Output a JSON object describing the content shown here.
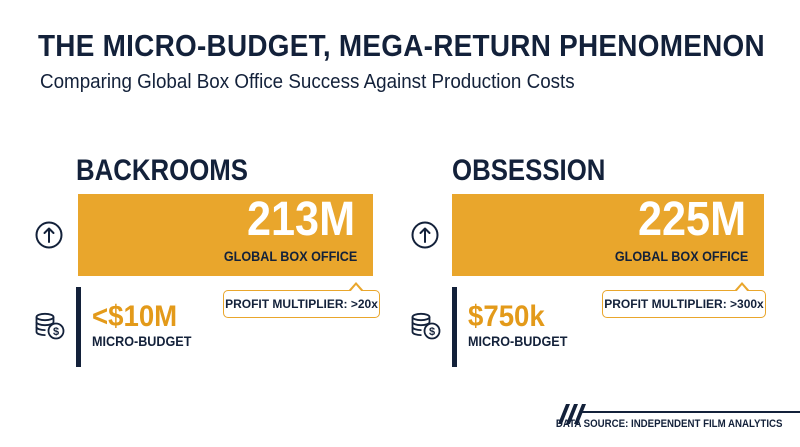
{
  "header": {
    "title": "THE MICRO-BUDGET, MEGA-RETURN PHENOMENON",
    "subtitle": "Comparing Global Box Office Success Against Production Costs"
  },
  "films": [
    {
      "name": "BACKROOMS",
      "gross_display": "213M",
      "gross_label": "GLOBAL BOX OFFICE",
      "multiplier_text": "PROFIT MULTIPLIER: >20x",
      "budget_display": "<$10M",
      "budget_label": "MICRO-BUDGET"
    },
    {
      "name": "OBSESSION",
      "gross_display": "225M",
      "gross_label": "GLOBAL BOX OFFICE",
      "multiplier_text": "PROFIT MULTIPLIER: >300x",
      "budget_display": "$750k",
      "budget_label": "MICRO-BUDGET"
    }
  ],
  "footer": {
    "source": "DATA SOURCE: INDEPENDENT FILM ANALYTICS"
  },
  "icons": {
    "gross": "arrow-up-circle-icon",
    "budget": "coin-stack-dollar-icon"
  },
  "colors": {
    "navy": "#13213a",
    "gold_bar": "#e9a62c",
    "gold_text": "#e39a1a",
    "white": "#ffffff"
  },
  "chart_data": {
    "type": "bar",
    "title": "THE MICRO-BUDGET, MEGA-RETURN PHENOMENON",
    "subtitle": "Comparing Global Box Office Success Against Production Costs",
    "categories": [
      "BACKROOMS",
      "OBSESSION"
    ],
    "series": [
      {
        "name": "GLOBAL BOX OFFICE",
        "values": [
          213000000,
          225000000
        ]
      },
      {
        "name": "MICRO-BUDGET",
        "values": [
          10000000,
          750000
        ]
      }
    ],
    "budget_qualifiers": [
      "<",
      ""
    ],
    "profit_multipliers": [
      ">20x",
      ">300x"
    ],
    "xlabel": "",
    "ylabel": "",
    "grid": false
  }
}
